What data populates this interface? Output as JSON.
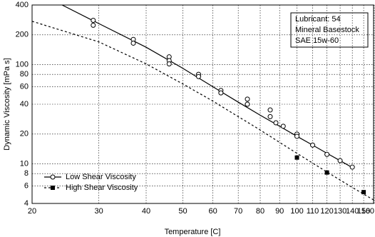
{
  "chart_data": {
    "type": "line",
    "xlabel": "Temperature  [C]",
    "ylabel": "Dynamic Viscosity  [mPa s]",
    "xlog": true,
    "ylog": true,
    "xlim": [
      20,
      160
    ],
    "ylim": [
      4,
      400
    ],
    "xticks": [
      20,
      30,
      40,
      50,
      60,
      70,
      80,
      90,
      100,
      110,
      120,
      130,
      140,
      150,
      160
    ],
    "yticks": [
      4,
      6,
      8,
      10,
      20,
      40,
      60,
      80,
      100,
      200,
      400
    ],
    "grid": true,
    "legend": "lower left",
    "annotation": [
      "Lubricant:  54",
      "Mineral Basestock",
      "SAE 15w-60"
    ],
    "series": [
      {
        "name": "Low Shear Viscosity",
        "color": "#000000",
        "marker": "circle",
        "linestyle": "solid",
        "x": [
          29,
          29,
          37,
          37,
          46,
          46,
          46,
          55,
          55,
          63,
          63,
          74,
          74,
          85,
          85,
          88,
          92,
          100,
          100,
          110,
          120,
          130,
          140
        ],
        "values": [
          280,
          250,
          180,
          165,
          120,
          110,
          102,
          80,
          76,
          55,
          52,
          45,
          40,
          35,
          30,
          26,
          24,
          20,
          19,
          15.5,
          12.5,
          10.8,
          9.3
        ],
        "curve_x": [
          24,
          30,
          40,
          50,
          60,
          70,
          80,
          90,
          100,
          110,
          120,
          130,
          140
        ],
        "curve_values": [
          400,
          260,
          150,
          92,
          60,
          42,
          31,
          24,
          19,
          15.5,
          12.8,
          10.8,
          9.2
        ]
      },
      {
        "name": "High Shear Viscosity",
        "color": "#000000",
        "marker": "square",
        "linestyle": "dashed",
        "x": [
          100,
          120,
          150
        ],
        "values": [
          11.6,
          8.2,
          5.2
        ],
        "curve_x": [
          20,
          30,
          40,
          50,
          60,
          70,
          80,
          90,
          100,
          120,
          140,
          160
        ],
        "curve_values": [
          274,
          170,
          102,
          64,
          43,
          30,
          22,
          16.5,
          12.8,
          8.3,
          5.8,
          4.3
        ]
      }
    ]
  }
}
